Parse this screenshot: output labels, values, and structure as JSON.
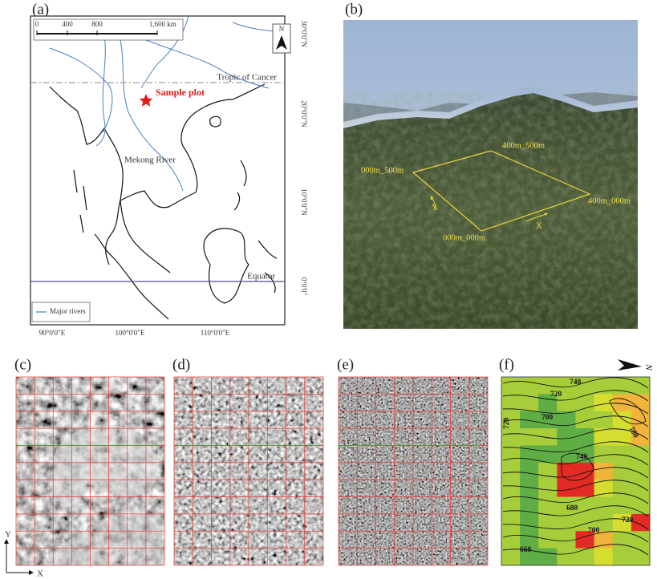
{
  "panel_labels": [
    "(a)",
    "(b)",
    "(c)",
    "(d)",
    "(e)",
    "(f)"
  ],
  "map": {
    "scale_labels": [
      "0",
      "400",
      "800",
      "1,600",
      "km"
    ],
    "north": "N",
    "tropic": "Tropic of Cancer",
    "sample": "Sample plot",
    "river": "Mekong River",
    "equator": "Equator",
    "legend": "Major rivers",
    "lon_labels": [
      "90°0'0\"E",
      "100°0'0\"E",
      "110°0'0\"E"
    ],
    "lat_labels": [
      "30°0'0\"N",
      "20°0'0\"N",
      "10°0'0\"N",
      "0°0'0\""
    ]
  },
  "photo": {
    "corners": [
      "000m_500m",
      "400m_500m",
      "400m_000m",
      "000m_000m"
    ],
    "axes": [
      "Y",
      "X"
    ]
  },
  "contours": {
    "labels": [
      "740",
      "720",
      "700",
      "720",
      "780",
      "740",
      "680",
      "720",
      "700",
      "660"
    ],
    "north": "N"
  },
  "axes": [
    "Y",
    "X"
  ]
}
